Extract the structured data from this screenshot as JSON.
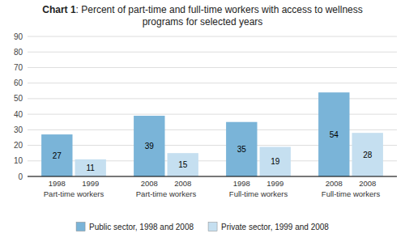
{
  "chart_data": {
    "type": "bar",
    "title": "Chart 1: Percent of part-time and full-time workers with access to wellness programs for selected years",
    "categories": [
      "Part-time workers",
      "Part-time workers",
      "Full-time workers",
      "Full-time workers"
    ],
    "series": [
      {
        "name": "Public sector, 1998 and 2008",
        "color": "#7ab4d8",
        "values": [
          27,
          39,
          35,
          54
        ],
        "bar_labels": [
          "1998",
          "2008",
          "1998",
          "2008"
        ]
      },
      {
        "name": "Private sector, 1999 and 2008",
        "color": "#c5dff0",
        "values": [
          11,
          15,
          19,
          28
        ],
        "bar_labels": [
          "1999",
          "2008",
          "1999",
          "2008"
        ]
      }
    ],
    "ylim": [
      0,
      90
    ],
    "yticks": [
      0,
      10,
      20,
      30,
      40,
      50,
      60,
      70,
      80,
      90
    ],
    "grid": true,
    "legend": "bottom",
    "data_labels": true
  }
}
